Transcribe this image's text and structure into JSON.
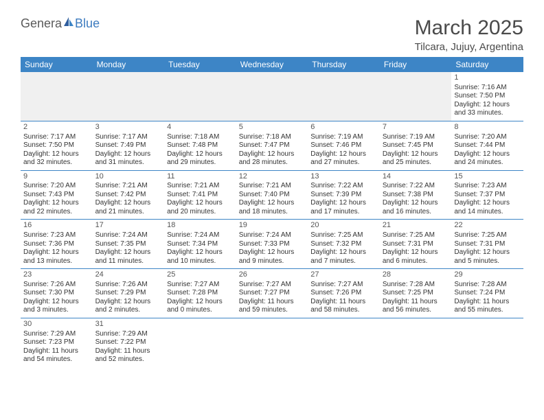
{
  "logo": {
    "part1": "Genera",
    "part2": "Blue"
  },
  "title": "March 2025",
  "location": "Tilcara, Jujuy, Argentina",
  "colors": {
    "header_bg": "#3d85c6",
    "header_text": "#ffffff",
    "cell_border": "#3d85c6",
    "text": "#333333",
    "logo_gray": "#5a5a5a",
    "logo_blue": "#3d7bbf",
    "empty_bg": "#f0f0f0"
  },
  "weekdays": [
    "Sunday",
    "Monday",
    "Tuesday",
    "Wednesday",
    "Thursday",
    "Friday",
    "Saturday"
  ],
  "weeks": [
    [
      null,
      null,
      null,
      null,
      null,
      null,
      {
        "d": "1",
        "sr": "Sunrise: 7:16 AM",
        "ss": "Sunset: 7:50 PM",
        "dl1": "Daylight: 12 hours",
        "dl2": "and 33 minutes."
      }
    ],
    [
      {
        "d": "2",
        "sr": "Sunrise: 7:17 AM",
        "ss": "Sunset: 7:50 PM",
        "dl1": "Daylight: 12 hours",
        "dl2": "and 32 minutes."
      },
      {
        "d": "3",
        "sr": "Sunrise: 7:17 AM",
        "ss": "Sunset: 7:49 PM",
        "dl1": "Daylight: 12 hours",
        "dl2": "and 31 minutes."
      },
      {
        "d": "4",
        "sr": "Sunrise: 7:18 AM",
        "ss": "Sunset: 7:48 PM",
        "dl1": "Daylight: 12 hours",
        "dl2": "and 29 minutes."
      },
      {
        "d": "5",
        "sr": "Sunrise: 7:18 AM",
        "ss": "Sunset: 7:47 PM",
        "dl1": "Daylight: 12 hours",
        "dl2": "and 28 minutes."
      },
      {
        "d": "6",
        "sr": "Sunrise: 7:19 AM",
        "ss": "Sunset: 7:46 PM",
        "dl1": "Daylight: 12 hours",
        "dl2": "and 27 minutes."
      },
      {
        "d": "7",
        "sr": "Sunrise: 7:19 AM",
        "ss": "Sunset: 7:45 PM",
        "dl1": "Daylight: 12 hours",
        "dl2": "and 25 minutes."
      },
      {
        "d": "8",
        "sr": "Sunrise: 7:20 AM",
        "ss": "Sunset: 7:44 PM",
        "dl1": "Daylight: 12 hours",
        "dl2": "and 24 minutes."
      }
    ],
    [
      {
        "d": "9",
        "sr": "Sunrise: 7:20 AM",
        "ss": "Sunset: 7:43 PM",
        "dl1": "Daylight: 12 hours",
        "dl2": "and 22 minutes."
      },
      {
        "d": "10",
        "sr": "Sunrise: 7:21 AM",
        "ss": "Sunset: 7:42 PM",
        "dl1": "Daylight: 12 hours",
        "dl2": "and 21 minutes."
      },
      {
        "d": "11",
        "sr": "Sunrise: 7:21 AM",
        "ss": "Sunset: 7:41 PM",
        "dl1": "Daylight: 12 hours",
        "dl2": "and 20 minutes."
      },
      {
        "d": "12",
        "sr": "Sunrise: 7:21 AM",
        "ss": "Sunset: 7:40 PM",
        "dl1": "Daylight: 12 hours",
        "dl2": "and 18 minutes."
      },
      {
        "d": "13",
        "sr": "Sunrise: 7:22 AM",
        "ss": "Sunset: 7:39 PM",
        "dl1": "Daylight: 12 hours",
        "dl2": "and 17 minutes."
      },
      {
        "d": "14",
        "sr": "Sunrise: 7:22 AM",
        "ss": "Sunset: 7:38 PM",
        "dl1": "Daylight: 12 hours",
        "dl2": "and 16 minutes."
      },
      {
        "d": "15",
        "sr": "Sunrise: 7:23 AM",
        "ss": "Sunset: 7:37 PM",
        "dl1": "Daylight: 12 hours",
        "dl2": "and 14 minutes."
      }
    ],
    [
      {
        "d": "16",
        "sr": "Sunrise: 7:23 AM",
        "ss": "Sunset: 7:36 PM",
        "dl1": "Daylight: 12 hours",
        "dl2": "and 13 minutes."
      },
      {
        "d": "17",
        "sr": "Sunrise: 7:24 AM",
        "ss": "Sunset: 7:35 PM",
        "dl1": "Daylight: 12 hours",
        "dl2": "and 11 minutes."
      },
      {
        "d": "18",
        "sr": "Sunrise: 7:24 AM",
        "ss": "Sunset: 7:34 PM",
        "dl1": "Daylight: 12 hours",
        "dl2": "and 10 minutes."
      },
      {
        "d": "19",
        "sr": "Sunrise: 7:24 AM",
        "ss": "Sunset: 7:33 PM",
        "dl1": "Daylight: 12 hours",
        "dl2": "and 9 minutes."
      },
      {
        "d": "20",
        "sr": "Sunrise: 7:25 AM",
        "ss": "Sunset: 7:32 PM",
        "dl1": "Daylight: 12 hours",
        "dl2": "and 7 minutes."
      },
      {
        "d": "21",
        "sr": "Sunrise: 7:25 AM",
        "ss": "Sunset: 7:31 PM",
        "dl1": "Daylight: 12 hours",
        "dl2": "and 6 minutes."
      },
      {
        "d": "22",
        "sr": "Sunrise: 7:25 AM",
        "ss": "Sunset: 7:31 PM",
        "dl1": "Daylight: 12 hours",
        "dl2": "and 5 minutes."
      }
    ],
    [
      {
        "d": "23",
        "sr": "Sunrise: 7:26 AM",
        "ss": "Sunset: 7:30 PM",
        "dl1": "Daylight: 12 hours",
        "dl2": "and 3 minutes."
      },
      {
        "d": "24",
        "sr": "Sunrise: 7:26 AM",
        "ss": "Sunset: 7:29 PM",
        "dl1": "Daylight: 12 hours",
        "dl2": "and 2 minutes."
      },
      {
        "d": "25",
        "sr": "Sunrise: 7:27 AM",
        "ss": "Sunset: 7:28 PM",
        "dl1": "Daylight: 12 hours",
        "dl2": "and 0 minutes."
      },
      {
        "d": "26",
        "sr": "Sunrise: 7:27 AM",
        "ss": "Sunset: 7:27 PM",
        "dl1": "Daylight: 11 hours",
        "dl2": "and 59 minutes."
      },
      {
        "d": "27",
        "sr": "Sunrise: 7:27 AM",
        "ss": "Sunset: 7:26 PM",
        "dl1": "Daylight: 11 hours",
        "dl2": "and 58 minutes."
      },
      {
        "d": "28",
        "sr": "Sunrise: 7:28 AM",
        "ss": "Sunset: 7:25 PM",
        "dl1": "Daylight: 11 hours",
        "dl2": "and 56 minutes."
      },
      {
        "d": "29",
        "sr": "Sunrise: 7:28 AM",
        "ss": "Sunset: 7:24 PM",
        "dl1": "Daylight: 11 hours",
        "dl2": "and 55 minutes."
      }
    ],
    [
      {
        "d": "30",
        "sr": "Sunrise: 7:29 AM",
        "ss": "Sunset: 7:23 PM",
        "dl1": "Daylight: 11 hours",
        "dl2": "and 54 minutes."
      },
      {
        "d": "31",
        "sr": "Sunrise: 7:29 AM",
        "ss": "Sunset: 7:22 PM",
        "dl1": "Daylight: 11 hours",
        "dl2": "and 52 minutes."
      },
      null,
      null,
      null,
      null,
      null
    ]
  ]
}
